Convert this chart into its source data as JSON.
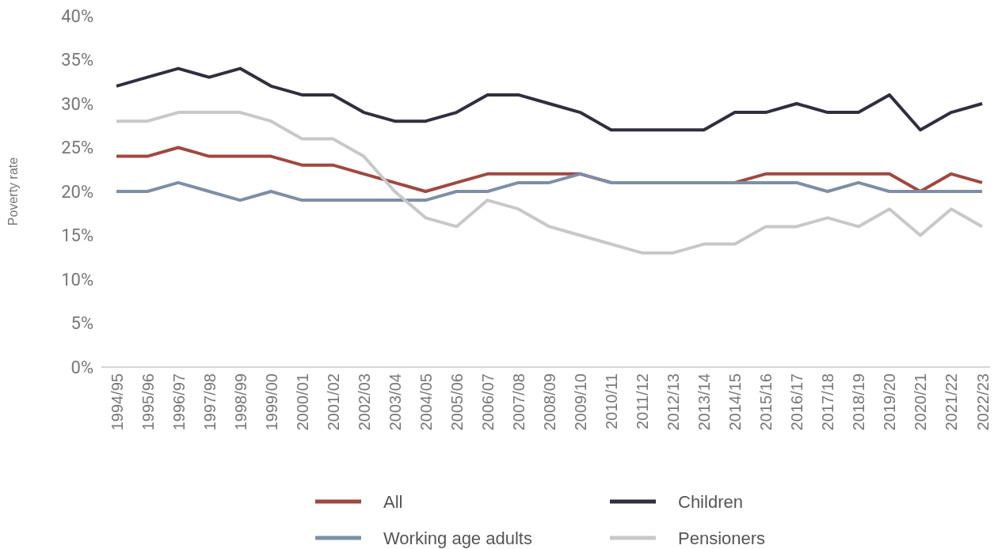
{
  "chart_data": {
    "type": "line",
    "ylabel": "Poverty rate",
    "categories": [
      "1994/95",
      "1995/96",
      "1996/97",
      "1997/98",
      "1998/99",
      "1999/00",
      "2000/01",
      "2001/02",
      "2002/03",
      "2003/04",
      "2004/05",
      "2005/06",
      "2006/07",
      "2007/08",
      "2008/09",
      "2009/10",
      "2010/11",
      "2011/12",
      "2012/13",
      "2013/14",
      "2014/15",
      "2015/16",
      "2016/17",
      "2017/18",
      "2018/19",
      "2019/20",
      "2020/21",
      "2021/22",
      "2022/23"
    ],
    "series": [
      {
        "name": "All",
        "color": "#a0483f",
        "values": [
          24,
          24,
          25,
          24,
          24,
          24,
          23,
          23,
          22,
          21,
          20,
          21,
          22,
          22,
          22,
          22,
          21,
          null,
          null,
          null,
          21,
          22,
          22,
          22,
          22,
          22,
          20,
          22,
          21
        ]
      },
      {
        "name": "Children",
        "color": "#2f2f3f",
        "values": [
          32,
          33,
          34,
          33,
          34,
          32,
          31,
          31,
          29,
          28,
          28,
          29,
          31,
          31,
          30,
          29,
          27,
          27,
          27,
          27,
          29,
          29,
          30,
          29,
          29,
          31,
          27,
          29,
          30
        ]
      },
      {
        "name": "Working age adults",
        "color": "#7d8ea8",
        "values": [
          20,
          20,
          21,
          20,
          19,
          20,
          19,
          19,
          19,
          19,
          19,
          20,
          20,
          21,
          21,
          22,
          21,
          21,
          21,
          21,
          21,
          21,
          21,
          20,
          21,
          20,
          20,
          20,
          20
        ]
      },
      {
        "name": "Pensioners",
        "color": "#c8c8c8",
        "values": [
          28,
          28,
          29,
          29,
          29,
          28,
          26,
          26,
          24,
          20,
          17,
          16,
          19,
          18,
          16,
          15,
          14,
          13,
          13,
          14,
          14,
          16,
          16,
          17,
          16,
          18,
          15,
          18,
          16
        ]
      }
    ],
    "ylim": [
      0,
      40
    ],
    "yticks": [
      {
        "value": 0,
        "label": "0%"
      },
      {
        "value": 5,
        "label": "5%"
      },
      {
        "value": 10,
        "label": "10%"
      },
      {
        "value": 15,
        "label": "15%"
      },
      {
        "value": 20,
        "label": "20%"
      },
      {
        "value": 25,
        "label": "25%"
      },
      {
        "value": 30,
        "label": "30%"
      },
      {
        "value": 35,
        "label": "35%"
      },
      {
        "value": 40,
        "label": "40%"
      }
    ],
    "grid": false,
    "legend": "bottom",
    "marker": "none",
    "line_style": "solid"
  }
}
